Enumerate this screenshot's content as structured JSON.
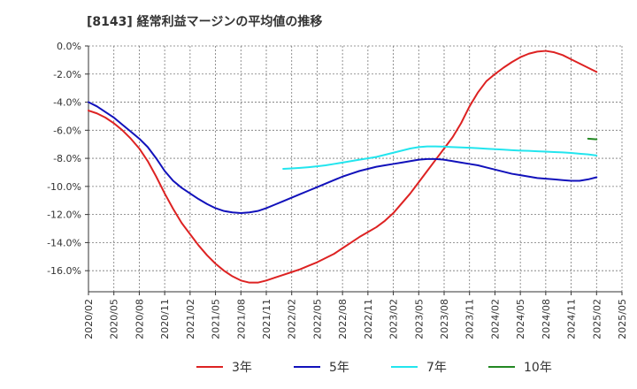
{
  "chart_data": {
    "type": "line",
    "title": "[8143]  経常利益マージンの平均値の推移",
    "xlabel": "",
    "ylabel": "",
    "ylim": [
      -17.5,
      0
    ],
    "yticks": [
      0,
      -2,
      -4,
      -6,
      -8,
      -10,
      -12,
      -14,
      -16
    ],
    "ytick_labels": [
      "0.0%",
      "-2.0%",
      "-4.0%",
      "-6.0%",
      "-8.0%",
      "-10.0%",
      "-12.0%",
      "-14.0%",
      "-16.0%"
    ],
    "xlim": [
      "2020/02",
      "2025/05"
    ],
    "xtick_labels": [
      "2020/02",
      "2020/05",
      "2020/08",
      "2020/11",
      "2021/02",
      "2021/05",
      "2021/08",
      "2021/11",
      "2022/02",
      "2022/05",
      "2022/08",
      "2022/11",
      "2023/02",
      "2023/05",
      "2023/08",
      "2023/11",
      "2024/02",
      "2024/05",
      "2024/08",
      "2024/11",
      "2025/02",
      "2025/05"
    ],
    "grid": true,
    "legend_position": "bottom",
    "series": [
      {
        "name": "3年",
        "color": "#dd2222",
        "points": [
          [
            "2020/02",
            -4.6
          ],
          [
            "2020/03",
            -4.8
          ],
          [
            "2020/04",
            -5.1
          ],
          [
            "2020/05",
            -5.5
          ],
          [
            "2020/06",
            -6.0
          ],
          [
            "2020/07",
            -6.6
          ],
          [
            "2020/08",
            -7.3
          ],
          [
            "2020/09",
            -8.2
          ],
          [
            "2020/10",
            -9.3
          ],
          [
            "2020/11",
            -10.5
          ],
          [
            "2020/12",
            -11.6
          ],
          [
            "2021/01",
            -12.6
          ],
          [
            "2021/02",
            -13.4
          ],
          [
            "2021/03",
            -14.2
          ],
          [
            "2021/04",
            -14.9
          ],
          [
            "2021/05",
            -15.5
          ],
          [
            "2021/06",
            -16.0
          ],
          [
            "2021/07",
            -16.4
          ],
          [
            "2021/08",
            -16.7
          ],
          [
            "2021/09",
            -16.85
          ],
          [
            "2021/10",
            -16.85
          ],
          [
            "2021/11",
            -16.7
          ],
          [
            "2021/12",
            -16.5
          ],
          [
            "2022/01",
            -16.3
          ],
          [
            "2022/02",
            -16.1
          ],
          [
            "2022/03",
            -15.9
          ],
          [
            "2022/04",
            -15.65
          ],
          [
            "2022/05",
            -15.4
          ],
          [
            "2022/06",
            -15.1
          ],
          [
            "2022/07",
            -14.8
          ],
          [
            "2022/08",
            -14.4
          ],
          [
            "2022/09",
            -14.0
          ],
          [
            "2022/10",
            -13.6
          ],
          [
            "2022/11",
            -13.25
          ],
          [
            "2022/12",
            -12.9
          ],
          [
            "2023/01",
            -12.45
          ],
          [
            "2023/02",
            -11.9
          ],
          [
            "2023/03",
            -11.2
          ],
          [
            "2023/04",
            -10.5
          ],
          [
            "2023/05",
            -9.7
          ],
          [
            "2023/06",
            -8.9
          ],
          [
            "2023/07",
            -8.1
          ],
          [
            "2023/08",
            -7.3
          ],
          [
            "2023/09",
            -6.5
          ],
          [
            "2023/10",
            -5.5
          ],
          [
            "2023/11",
            -4.3
          ],
          [
            "2023/12",
            -3.3
          ],
          [
            "2024/01",
            -2.5
          ],
          [
            "2024/02",
            -2.0
          ],
          [
            "2024/03",
            -1.55
          ],
          [
            "2024/04",
            -1.15
          ],
          [
            "2024/05",
            -0.8
          ],
          [
            "2024/06",
            -0.55
          ],
          [
            "2024/07",
            -0.4
          ],
          [
            "2024/08",
            -0.35
          ],
          [
            "2024/09",
            -0.45
          ],
          [
            "2024/10",
            -0.65
          ],
          [
            "2024/11",
            -0.95
          ],
          [
            "2024/12",
            -1.25
          ],
          [
            "2025/01",
            -1.55
          ],
          [
            "2025/02",
            -1.85
          ]
        ]
      },
      {
        "name": "5年",
        "color": "#1111bb",
        "points": [
          [
            "2020/02",
            -4.0
          ],
          [
            "2020/03",
            -4.3
          ],
          [
            "2020/04",
            -4.7
          ],
          [
            "2020/05",
            -5.1
          ],
          [
            "2020/06",
            -5.6
          ],
          [
            "2020/07",
            -6.1
          ],
          [
            "2020/08",
            -6.6
          ],
          [
            "2020/09",
            -7.2
          ],
          [
            "2020/10",
            -8.0
          ],
          [
            "2020/11",
            -8.9
          ],
          [
            "2020/12",
            -9.6
          ],
          [
            "2021/01",
            -10.1
          ],
          [
            "2021/02",
            -10.5
          ],
          [
            "2021/03",
            -10.9
          ],
          [
            "2021/04",
            -11.25
          ],
          [
            "2021/05",
            -11.55
          ],
          [
            "2021/06",
            -11.75
          ],
          [
            "2021/07",
            -11.85
          ],
          [
            "2021/08",
            -11.9
          ],
          [
            "2021/09",
            -11.85
          ],
          [
            "2021/10",
            -11.75
          ],
          [
            "2021/11",
            -11.55
          ],
          [
            "2021/12",
            -11.3
          ],
          [
            "2022/01",
            -11.05
          ],
          [
            "2022/02",
            -10.8
          ],
          [
            "2022/03",
            -10.55
          ],
          [
            "2022/04",
            -10.3
          ],
          [
            "2022/05",
            -10.05
          ],
          [
            "2022/06",
            -9.8
          ],
          [
            "2022/07",
            -9.55
          ],
          [
            "2022/08",
            -9.3
          ],
          [
            "2022/09",
            -9.1
          ],
          [
            "2022/10",
            -8.9
          ],
          [
            "2022/11",
            -8.75
          ],
          [
            "2022/12",
            -8.6
          ],
          [
            "2023/01",
            -8.5
          ],
          [
            "2023/02",
            -8.4
          ],
          [
            "2023/03",
            -8.3
          ],
          [
            "2023/04",
            -8.2
          ],
          [
            "2023/05",
            -8.1
          ],
          [
            "2023/06",
            -8.05
          ],
          [
            "2023/07",
            -8.05
          ],
          [
            "2023/08",
            -8.1
          ],
          [
            "2023/09",
            -8.2
          ],
          [
            "2023/10",
            -8.3
          ],
          [
            "2023/11",
            -8.4
          ],
          [
            "2023/12",
            -8.5
          ],
          [
            "2024/01",
            -8.65
          ],
          [
            "2024/02",
            -8.8
          ],
          [
            "2024/03",
            -8.95
          ],
          [
            "2024/04",
            -9.1
          ],
          [
            "2024/05",
            -9.2
          ],
          [
            "2024/06",
            -9.3
          ],
          [
            "2024/07",
            -9.4
          ],
          [
            "2024/08",
            -9.45
          ],
          [
            "2024/09",
            -9.5
          ],
          [
            "2024/10",
            -9.55
          ],
          [
            "2024/11",
            -9.6
          ],
          [
            "2024/12",
            -9.6
          ],
          [
            "2025/01",
            -9.5
          ],
          [
            "2025/02",
            -9.35
          ]
        ]
      },
      {
        "name": "7年",
        "color": "#22e5ee",
        "points": [
          [
            "2022/01",
            -8.75
          ],
          [
            "2022/02",
            -8.72
          ],
          [
            "2022/03",
            -8.68
          ],
          [
            "2022/04",
            -8.63
          ],
          [
            "2022/05",
            -8.57
          ],
          [
            "2022/06",
            -8.5
          ],
          [
            "2022/07",
            -8.4
          ],
          [
            "2022/08",
            -8.3
          ],
          [
            "2022/09",
            -8.2
          ],
          [
            "2022/10",
            -8.1
          ],
          [
            "2022/11",
            -8.0
          ],
          [
            "2022/12",
            -7.9
          ],
          [
            "2023/01",
            -7.75
          ],
          [
            "2023/02",
            -7.6
          ],
          [
            "2023/03",
            -7.45
          ],
          [
            "2023/04",
            -7.3
          ],
          [
            "2023/05",
            -7.2
          ],
          [
            "2023/06",
            -7.15
          ],
          [
            "2023/07",
            -7.15
          ],
          [
            "2023/08",
            -7.17
          ],
          [
            "2023/09",
            -7.2
          ],
          [
            "2023/10",
            -7.22
          ],
          [
            "2023/11",
            -7.25
          ],
          [
            "2023/12",
            -7.28
          ],
          [
            "2024/01",
            -7.32
          ],
          [
            "2024/02",
            -7.35
          ],
          [
            "2024/03",
            -7.38
          ],
          [
            "2024/04",
            -7.42
          ],
          [
            "2024/05",
            -7.45
          ],
          [
            "2024/06",
            -7.47
          ],
          [
            "2024/07",
            -7.5
          ],
          [
            "2024/08",
            -7.52
          ],
          [
            "2024/09",
            -7.55
          ],
          [
            "2024/10",
            -7.58
          ],
          [
            "2024/11",
            -7.62
          ],
          [
            "2024/12",
            -7.67
          ],
          [
            "2025/01",
            -7.72
          ],
          [
            "2025/02",
            -7.8
          ]
        ]
      },
      {
        "name": "10年",
        "color": "#228822",
        "points": [
          [
            "2025/01",
            -6.6
          ],
          [
            "2025/02",
            -6.65
          ]
        ]
      }
    ]
  }
}
